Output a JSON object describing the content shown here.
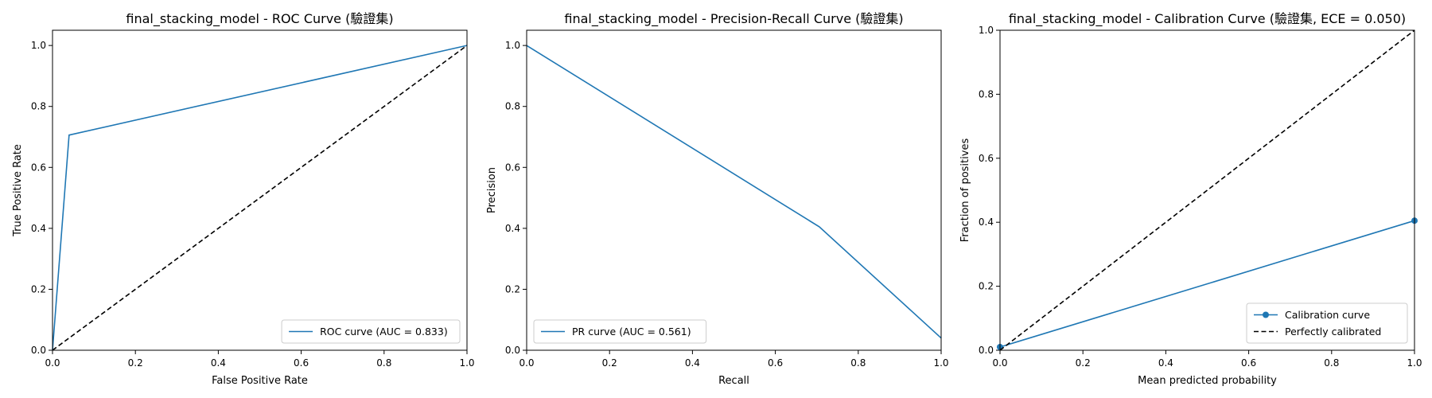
{
  "chart_data": [
    {
      "type": "line",
      "title": "final_stacking_model - ROC Curve (驗證集)",
      "xlabel": "False Positive Rate",
      "ylabel": "True Positive Rate",
      "xlim": [
        0,
        1
      ],
      "ylim": [
        0,
        1.05
      ],
      "xticks": [
        "0.0",
        "0.2",
        "0.4",
        "0.6",
        "0.8",
        "1.0"
      ],
      "yticks": [
        "0.0",
        "0.2",
        "0.4",
        "0.6",
        "0.8",
        "1.0"
      ],
      "legend_position": "lower-right",
      "series": [
        {
          "name": "ROC curve (AUC = 0.833)",
          "x": [
            0,
            0.04,
            1
          ],
          "y": [
            0,
            0.706,
            1
          ],
          "color": "#1f77b4",
          "style": "solid"
        },
        {
          "name": "",
          "x": [
            0,
            1
          ],
          "y": [
            0,
            1
          ],
          "color": "#000000",
          "style": "dashed"
        }
      ]
    },
    {
      "type": "line",
      "title": "final_stacking_model - Precision-Recall Curve (驗證集)",
      "xlabel": "Recall",
      "ylabel": "Precision",
      "xlim": [
        0,
        1
      ],
      "ylim": [
        0,
        1.05
      ],
      "xticks": [
        "0.0",
        "0.2",
        "0.4",
        "0.6",
        "0.8",
        "1.0"
      ],
      "yticks": [
        "0.0",
        "0.2",
        "0.4",
        "0.6",
        "0.8",
        "1.0"
      ],
      "legend_position": "lower-left",
      "series": [
        {
          "name": "PR curve (AUC = 0.561)",
          "x": [
            0,
            0.706,
            1
          ],
          "y": [
            1,
            0.405,
            0.04
          ],
          "color": "#1f77b4",
          "style": "solid"
        }
      ]
    },
    {
      "type": "line",
      "title": "final_stacking_model - Calibration Curve (驗證集, ECE = 0.050)",
      "xlabel": "Mean predicted probability",
      "ylabel": "Fraction of positives",
      "xlim": [
        0,
        1
      ],
      "ylim": [
        0,
        1
      ],
      "xticks": [
        "0.0",
        "0.2",
        "0.4",
        "0.6",
        "0.8",
        "1.0"
      ],
      "yticks": [
        "0.0",
        "0.2",
        "0.4",
        "0.6",
        "0.8",
        "1.0"
      ],
      "legend_position": "lower-right",
      "series": [
        {
          "name": "Calibration curve",
          "x": [
            0,
            1
          ],
          "y": [
            0.01,
            0.405
          ],
          "color": "#1f77b4",
          "style": "solid",
          "marker": "circle"
        },
        {
          "name": "Perfectly calibrated",
          "x": [
            0,
            1
          ],
          "y": [
            0,
            1
          ],
          "color": "#000000",
          "style": "dashed"
        }
      ]
    }
  ]
}
